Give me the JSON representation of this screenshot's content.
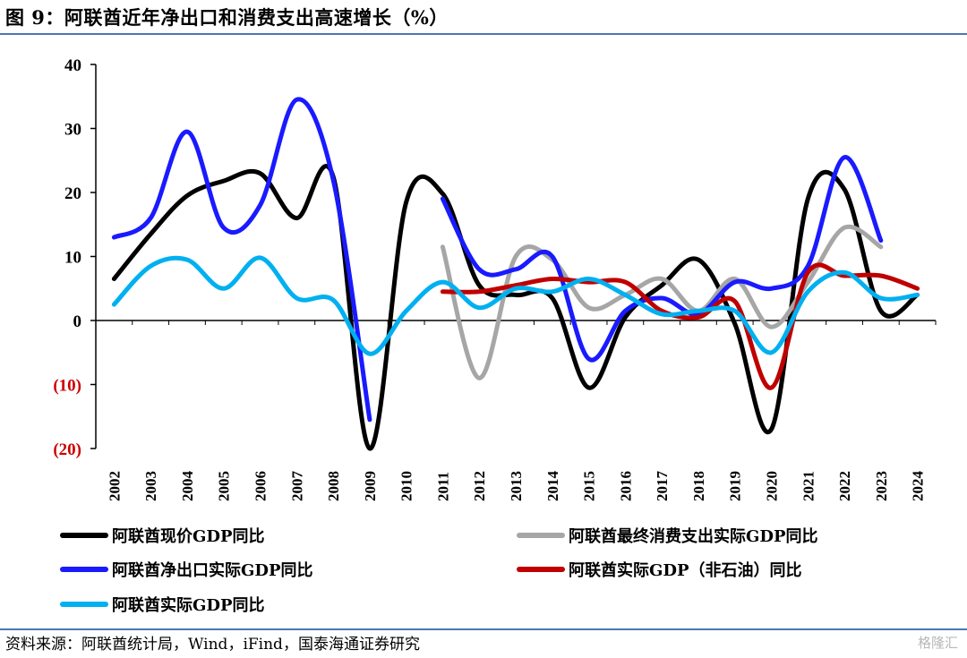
{
  "title": "图 9：阿联酋近年净出口和消费支出高速增长（%）",
  "source": "资料来源：阿联酋统计局，Wind，iFind，国泰海通证券研究",
  "watermark": "格隆汇",
  "chart_data": {
    "type": "line",
    "title": "",
    "xlabel": "",
    "ylabel": "",
    "ylim": [
      -20,
      40
    ],
    "yticks": [
      {
        "value": 40,
        "label": "40",
        "color": "#000000"
      },
      {
        "value": 30,
        "label": "30",
        "color": "#000000"
      },
      {
        "value": 20,
        "label": "20",
        "color": "#000000"
      },
      {
        "value": 10,
        "label": "10",
        "color": "#000000"
      },
      {
        "value": 0,
        "label": "0",
        "color": "#000000"
      },
      {
        "value": -10,
        "label": "(10)",
        "color": "#cc0000"
      },
      {
        "value": -20,
        "label": "(20)",
        "color": "#cc0000"
      }
    ],
    "categories": [
      "2002",
      "2003",
      "2004",
      "2005",
      "2006",
      "2007",
      "2008",
      "2009",
      "2010",
      "2011",
      "2012",
      "2013",
      "2014",
      "2015",
      "2016",
      "2017",
      "2018",
      "2019",
      "2020",
      "2021",
      "2022",
      "2023",
      "2024"
    ],
    "legend_position": "bottom",
    "series": [
      {
        "name": "阿联酋现价GDP同比",
        "color": "#000000",
        "values": [
          6.5,
          13.5,
          19.5,
          21.8,
          23.0,
          16.0,
          22.5,
          -20.0,
          18.5,
          19.8,
          5.5,
          4.0,
          3.5,
          -10.5,
          0.5,
          5.5,
          9.5,
          -0.5,
          -17.0,
          19.0,
          20.5,
          1.5,
          4.0
        ]
      },
      {
        "name": "阿联酋最终消费支出实际GDP同比",
        "color": "#a6a6a6",
        "values": [
          null,
          null,
          null,
          null,
          null,
          null,
          null,
          null,
          null,
          11.5,
          -9.0,
          10.0,
          9.5,
          2.0,
          4.0,
          6.5,
          1.5,
          6.5,
          -1.0,
          6.0,
          14.5,
          11.5,
          null
        ]
      },
      {
        "name": "阿联酋净出口实际GDP同比",
        "color": "#1a1aff",
        "values": [
          13.0,
          16.0,
          29.5,
          14.5,
          18.0,
          34.5,
          22.0,
          -15.5,
          null,
          19.0,
          8.0,
          8.0,
          10.0,
          -6.0,
          1.5,
          3.5,
          1.0,
          6.0,
          5.0,
          8.5,
          25.5,
          12.5,
          null
        ]
      },
      {
        "name": "阿联酋实际GDP（非石油）同比",
        "color": "#c00000",
        "values": [
          null,
          null,
          null,
          null,
          null,
          null,
          null,
          null,
          null,
          4.5,
          4.5,
          5.5,
          6.5,
          6.0,
          6.0,
          1.5,
          0.5,
          3.0,
          -10.5,
          7.5,
          7.0,
          7.0,
          5.0
        ]
      },
      {
        "name": "阿联酋实际GDP同比",
        "color": "#00b0f0",
        "values": [
          2.5,
          8.5,
          9.5,
          5.0,
          9.8,
          3.5,
          3.2,
          -5.2,
          1.5,
          6.0,
          2.0,
          5.0,
          4.5,
          6.5,
          4.0,
          1.0,
          1.5,
          1.5,
          -5.0,
          4.5,
          7.5,
          3.5,
          4.0
        ]
      }
    ]
  }
}
